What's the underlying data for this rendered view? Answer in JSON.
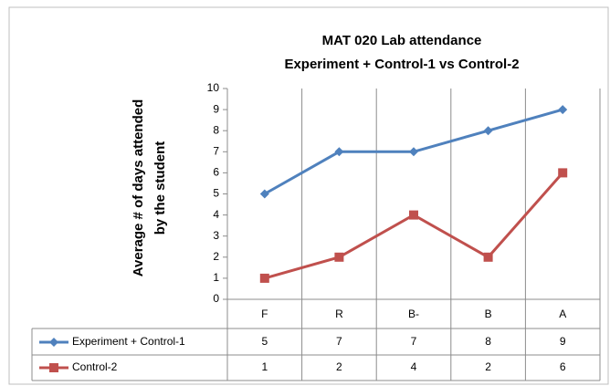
{
  "chart_data": {
    "type": "line",
    "title": [
      "MAT 020 Lab attendance",
      "Experiment + Control-1  vs  Control-2"
    ],
    "ylabel": [
      "Average # of days attended",
      "by the student"
    ],
    "categories": [
      "F",
      "R",
      "B-",
      "B",
      "A"
    ],
    "series": [
      {
        "name": "Experiment + Control-1",
        "color": "#4f81bd",
        "marker": "diamond",
        "values": [
          5,
          7,
          7,
          8,
          9
        ]
      },
      {
        "name": "Control-2",
        "color": "#c0504d",
        "marker": "square",
        "values": [
          1,
          2,
          4,
          2,
          6
        ]
      }
    ],
    "ylim": [
      0,
      10
    ],
    "yticks": [
      0,
      1,
      2,
      3,
      4,
      5,
      6,
      7,
      8,
      9,
      10
    ],
    "grid": "vertical",
    "data_table": true
  }
}
